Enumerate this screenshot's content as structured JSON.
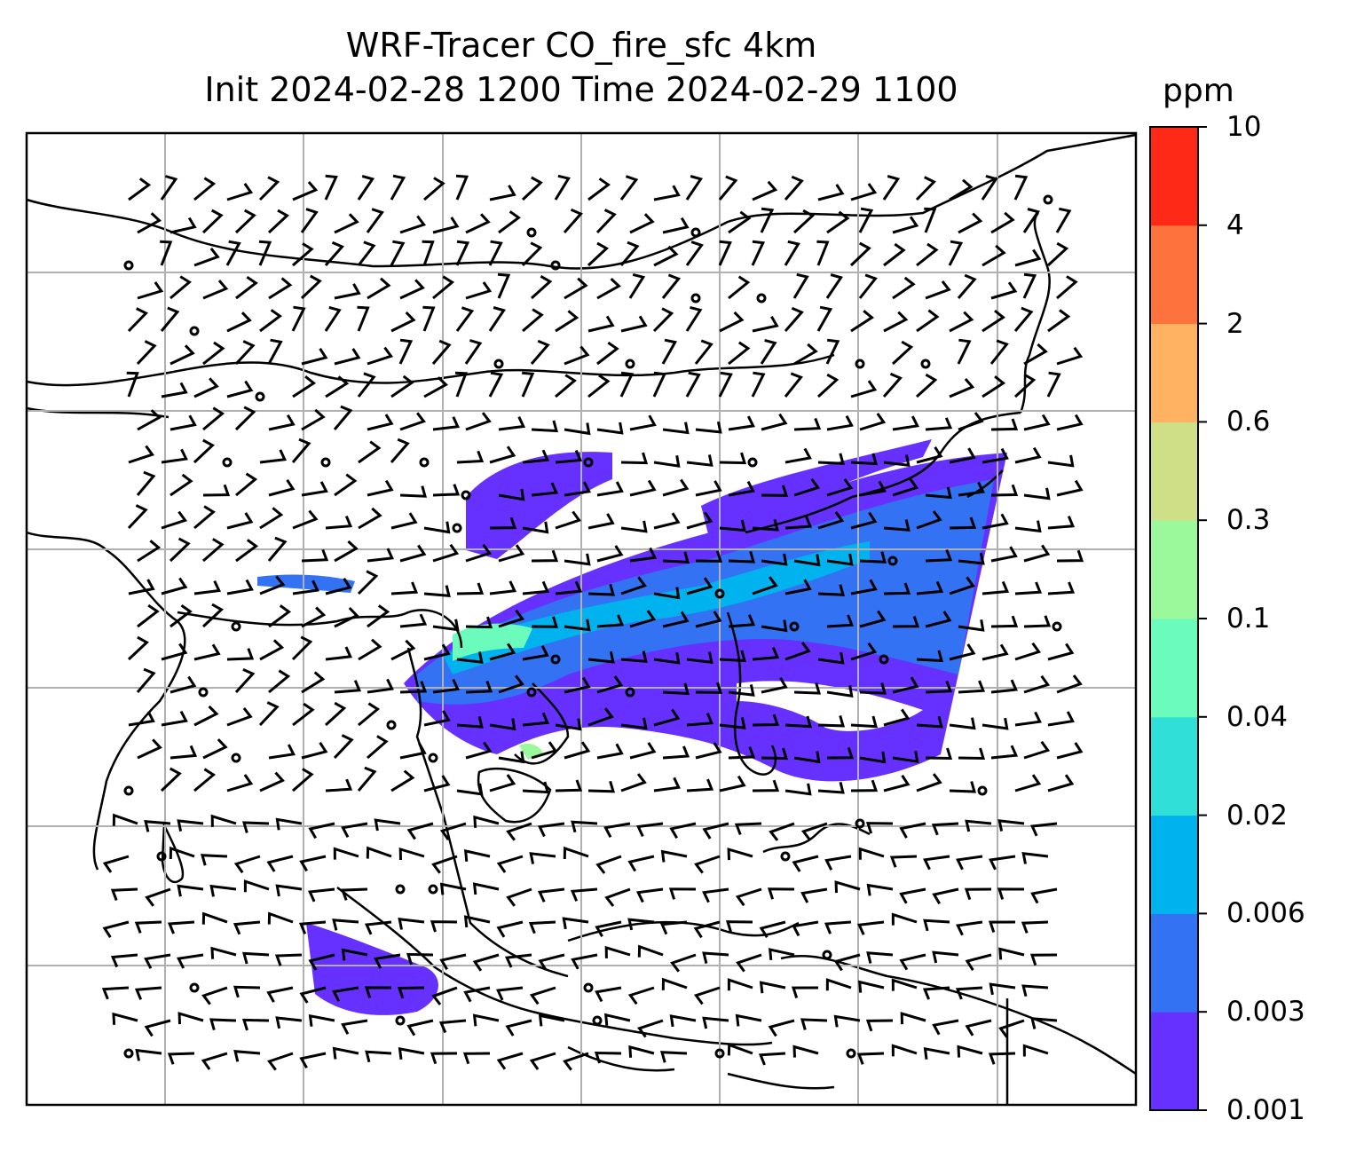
{
  "title": {
    "line1": "WRF-Tracer CO_fire_sfc 4km",
    "line2": "Init 2024-02-28 1200 Time 2024-02-29 1100"
  },
  "colorbar": {
    "unit": "ppm",
    "levels": [
      "0.001",
      "0.003",
      "0.006",
      "0.02",
      "0.04",
      "0.1",
      "0.3",
      "0.6",
      "2",
      "4",
      "10"
    ],
    "colors": [
      "#6630ff",
      "#3373f3",
      "#00b3ee",
      "#30dfd8",
      "#6bfbbd",
      "#9cf99b",
      "#cedf88",
      "#feb262",
      "#fe723e",
      "#ff2918"
    ]
  },
  "map": {
    "description_colors": {
      "land_outline": "#000000",
      "gridline": "#b0b0b0",
      "barb": "#000000"
    }
  }
}
